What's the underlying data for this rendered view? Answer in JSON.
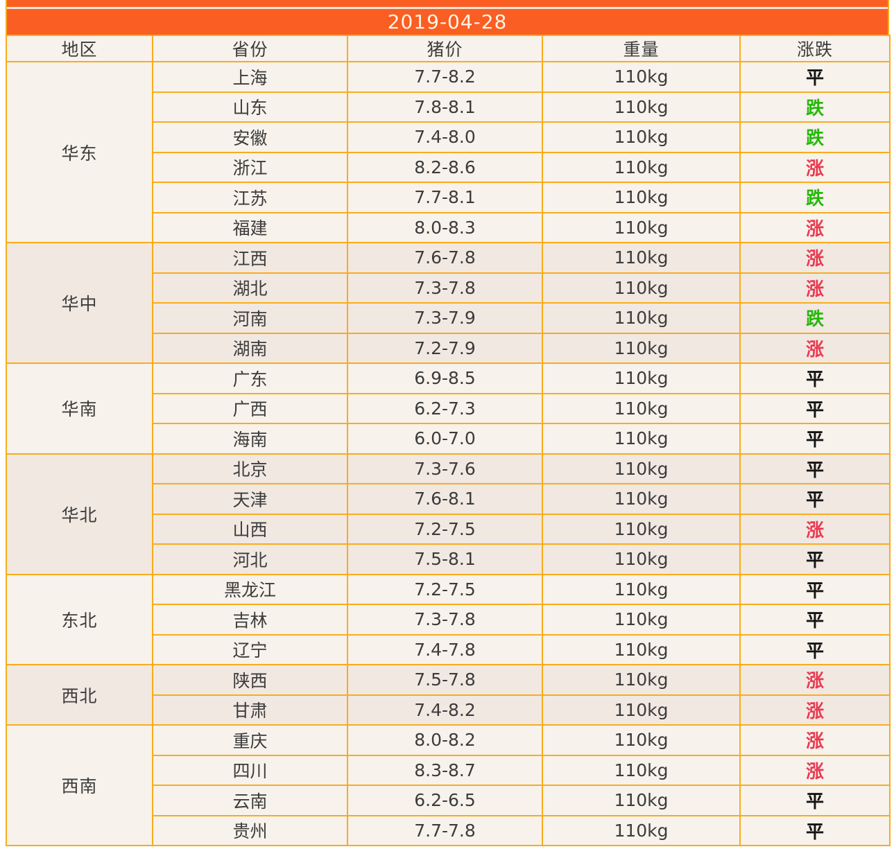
{
  "chart_data": {
    "type": "table",
    "title": "2019-04-28",
    "columns": [
      "地区",
      "省份",
      "猪价",
      "重量",
      "涨跌"
    ],
    "rows": [
      [
        "华东",
        "上海",
        "7.7-8.2",
        "110kg",
        "平"
      ],
      [
        "华东",
        "山东",
        "7.8-8.1",
        "110kg",
        "跌"
      ],
      [
        "华东",
        "安徽",
        "7.4-8.0",
        "110kg",
        "跌"
      ],
      [
        "华东",
        "浙江",
        "8.2-8.6",
        "110kg",
        "涨"
      ],
      [
        "华东",
        "江苏",
        "7.7-8.1",
        "110kg",
        "跌"
      ],
      [
        "华东",
        "福建",
        "8.0-8.3",
        "110kg",
        "涨"
      ],
      [
        "华中",
        "江西",
        "7.6-7.8",
        "110kg",
        "涨"
      ],
      [
        "华中",
        "湖北",
        "7.3-7.8",
        "110kg",
        "涨"
      ],
      [
        "华中",
        "河南",
        "7.3-7.9",
        "110kg",
        "跌"
      ],
      [
        "华中",
        "湖南",
        "7.2-7.9",
        "110kg",
        "涨"
      ],
      [
        "华南",
        "广东",
        "6.9-8.5",
        "110kg",
        "平"
      ],
      [
        "华南",
        "广西",
        "6.2-7.3",
        "110kg",
        "平"
      ],
      [
        "华南",
        "海南",
        "6.0-7.0",
        "110kg",
        "平"
      ],
      [
        "华北",
        "北京",
        "7.3-7.6",
        "110kg",
        "平"
      ],
      [
        "华北",
        "天津",
        "7.6-8.1",
        "110kg",
        "平"
      ],
      [
        "华北",
        "山西",
        "7.2-7.5",
        "110kg",
        "涨"
      ],
      [
        "华北",
        "河北",
        "7.5-8.1",
        "110kg",
        "平"
      ],
      [
        "东北",
        "黑龙江",
        "7.2-7.5",
        "110kg",
        "平"
      ],
      [
        "东北",
        "吉林",
        "7.3-7.8",
        "110kg",
        "平"
      ],
      [
        "东北",
        "辽宁",
        "7.4-7.8",
        "110kg",
        "平"
      ],
      [
        "西北",
        "陕西",
        "7.5-7.8",
        "110kg",
        "涨"
      ],
      [
        "西北",
        "甘肃",
        "7.4-8.2",
        "110kg",
        "涨"
      ],
      [
        "西南",
        "重庆",
        "8.0-8.2",
        "110kg",
        "涨"
      ],
      [
        "西南",
        "四川",
        "8.3-8.7",
        "110kg",
        "涨"
      ],
      [
        "西南",
        "云南",
        "6.2-6.5",
        "110kg",
        "平"
      ],
      [
        "西南",
        "贵州",
        "7.7-7.8",
        "110kg",
        "平"
      ]
    ],
    "layout_hints": {
      "grid": "on",
      "group_column": "地区",
      "group_shading": "alternating"
    }
  },
  "colors": {
    "banner-bg": "#FB5E22",
    "banner-text": "#FCF5E8",
    "border-color": "#F8AC1C",
    "separator-color": "#EFE6DA",
    "row-bg-light": "#F7F2EB",
    "row-bg-dark": "#F1E8E2",
    "text-color": "#3C3C3C",
    "up-color": "#E93A51",
    "down-color": "#28B70D",
    "flat-color": "#141414"
  },
  "change_classes": {
    "涨": "up",
    "跌": "down",
    "平": "flat"
  }
}
